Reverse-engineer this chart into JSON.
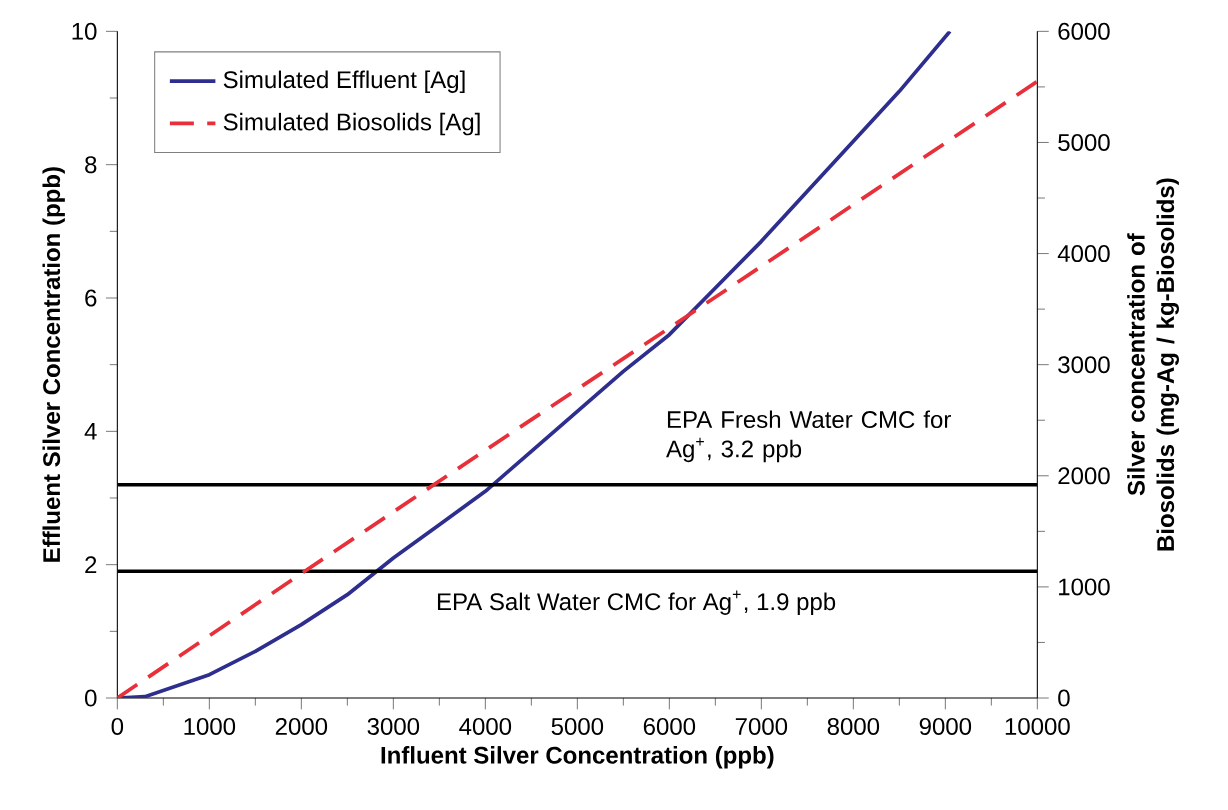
{
  "chart_data": {
    "type": "line",
    "xlabel": "Influent Silver Concentration (ppb)",
    "ylabel": "Effluent Silver Concentration (ppb)",
    "y2label": "Silver concentration of Biosolids (mg-Ag / kg-Biosolids)",
    "series": [
      {
        "name": "Simulated Effluent [Ag]",
        "color": "#2e2e8f",
        "line_style": "solid",
        "x": [
          0,
          300,
          1000,
          1500,
          2000,
          2500,
          3000,
          3500,
          4000,
          4500,
          5000,
          5500,
          6000,
          6500,
          7000,
          7500,
          8000,
          8500,
          9050
        ],
        "values": [
          0,
          0.02,
          0.35,
          0.7,
          1.1,
          1.55,
          2.1,
          2.6,
          3.1,
          3.7,
          4.3,
          4.9,
          5.45,
          6.15,
          6.85,
          7.6,
          8.35,
          9.1,
          10
        ]
      },
      {
        "name": "Simulated Biosolids [Ag]",
        "color": "#e8303a",
        "line_style": "dashed",
        "axis": "y2",
        "x": [
          0,
          2000,
          4000,
          6000,
          8000,
          10000
        ],
        "values": [
          0,
          1120,
          2230,
          3330,
          4440,
          5550
        ]
      }
    ],
    "xlim": [
      0,
      10000
    ],
    "xticks": [
      0,
      1000,
      2000,
      3000,
      4000,
      5000,
      6000,
      7000,
      8000,
      9000,
      10000
    ],
    "ylim": [
      0,
      10
    ],
    "yticks": [
      0,
      2,
      4,
      6,
      8,
      10
    ],
    "y2lim": [
      0,
      6000
    ],
    "y2ticks": [
      0,
      1000,
      2000,
      3000,
      4000,
      5000,
      6000
    ],
    "ref_lines": [
      {
        "axis": "y",
        "value": 3.2,
        "label": "EPA Fresh Water CMC for Ag$^{+}$, 3.2 ppb",
        "color": "#000000"
      },
      {
        "axis": "y",
        "value": 1.9,
        "label": "EPA Salt Water CMC for Ag$^{+}$, 1.9 ppb",
        "color": "#000000"
      }
    ],
    "grid": false,
    "legend": "top left",
    "marker": "none"
  }
}
